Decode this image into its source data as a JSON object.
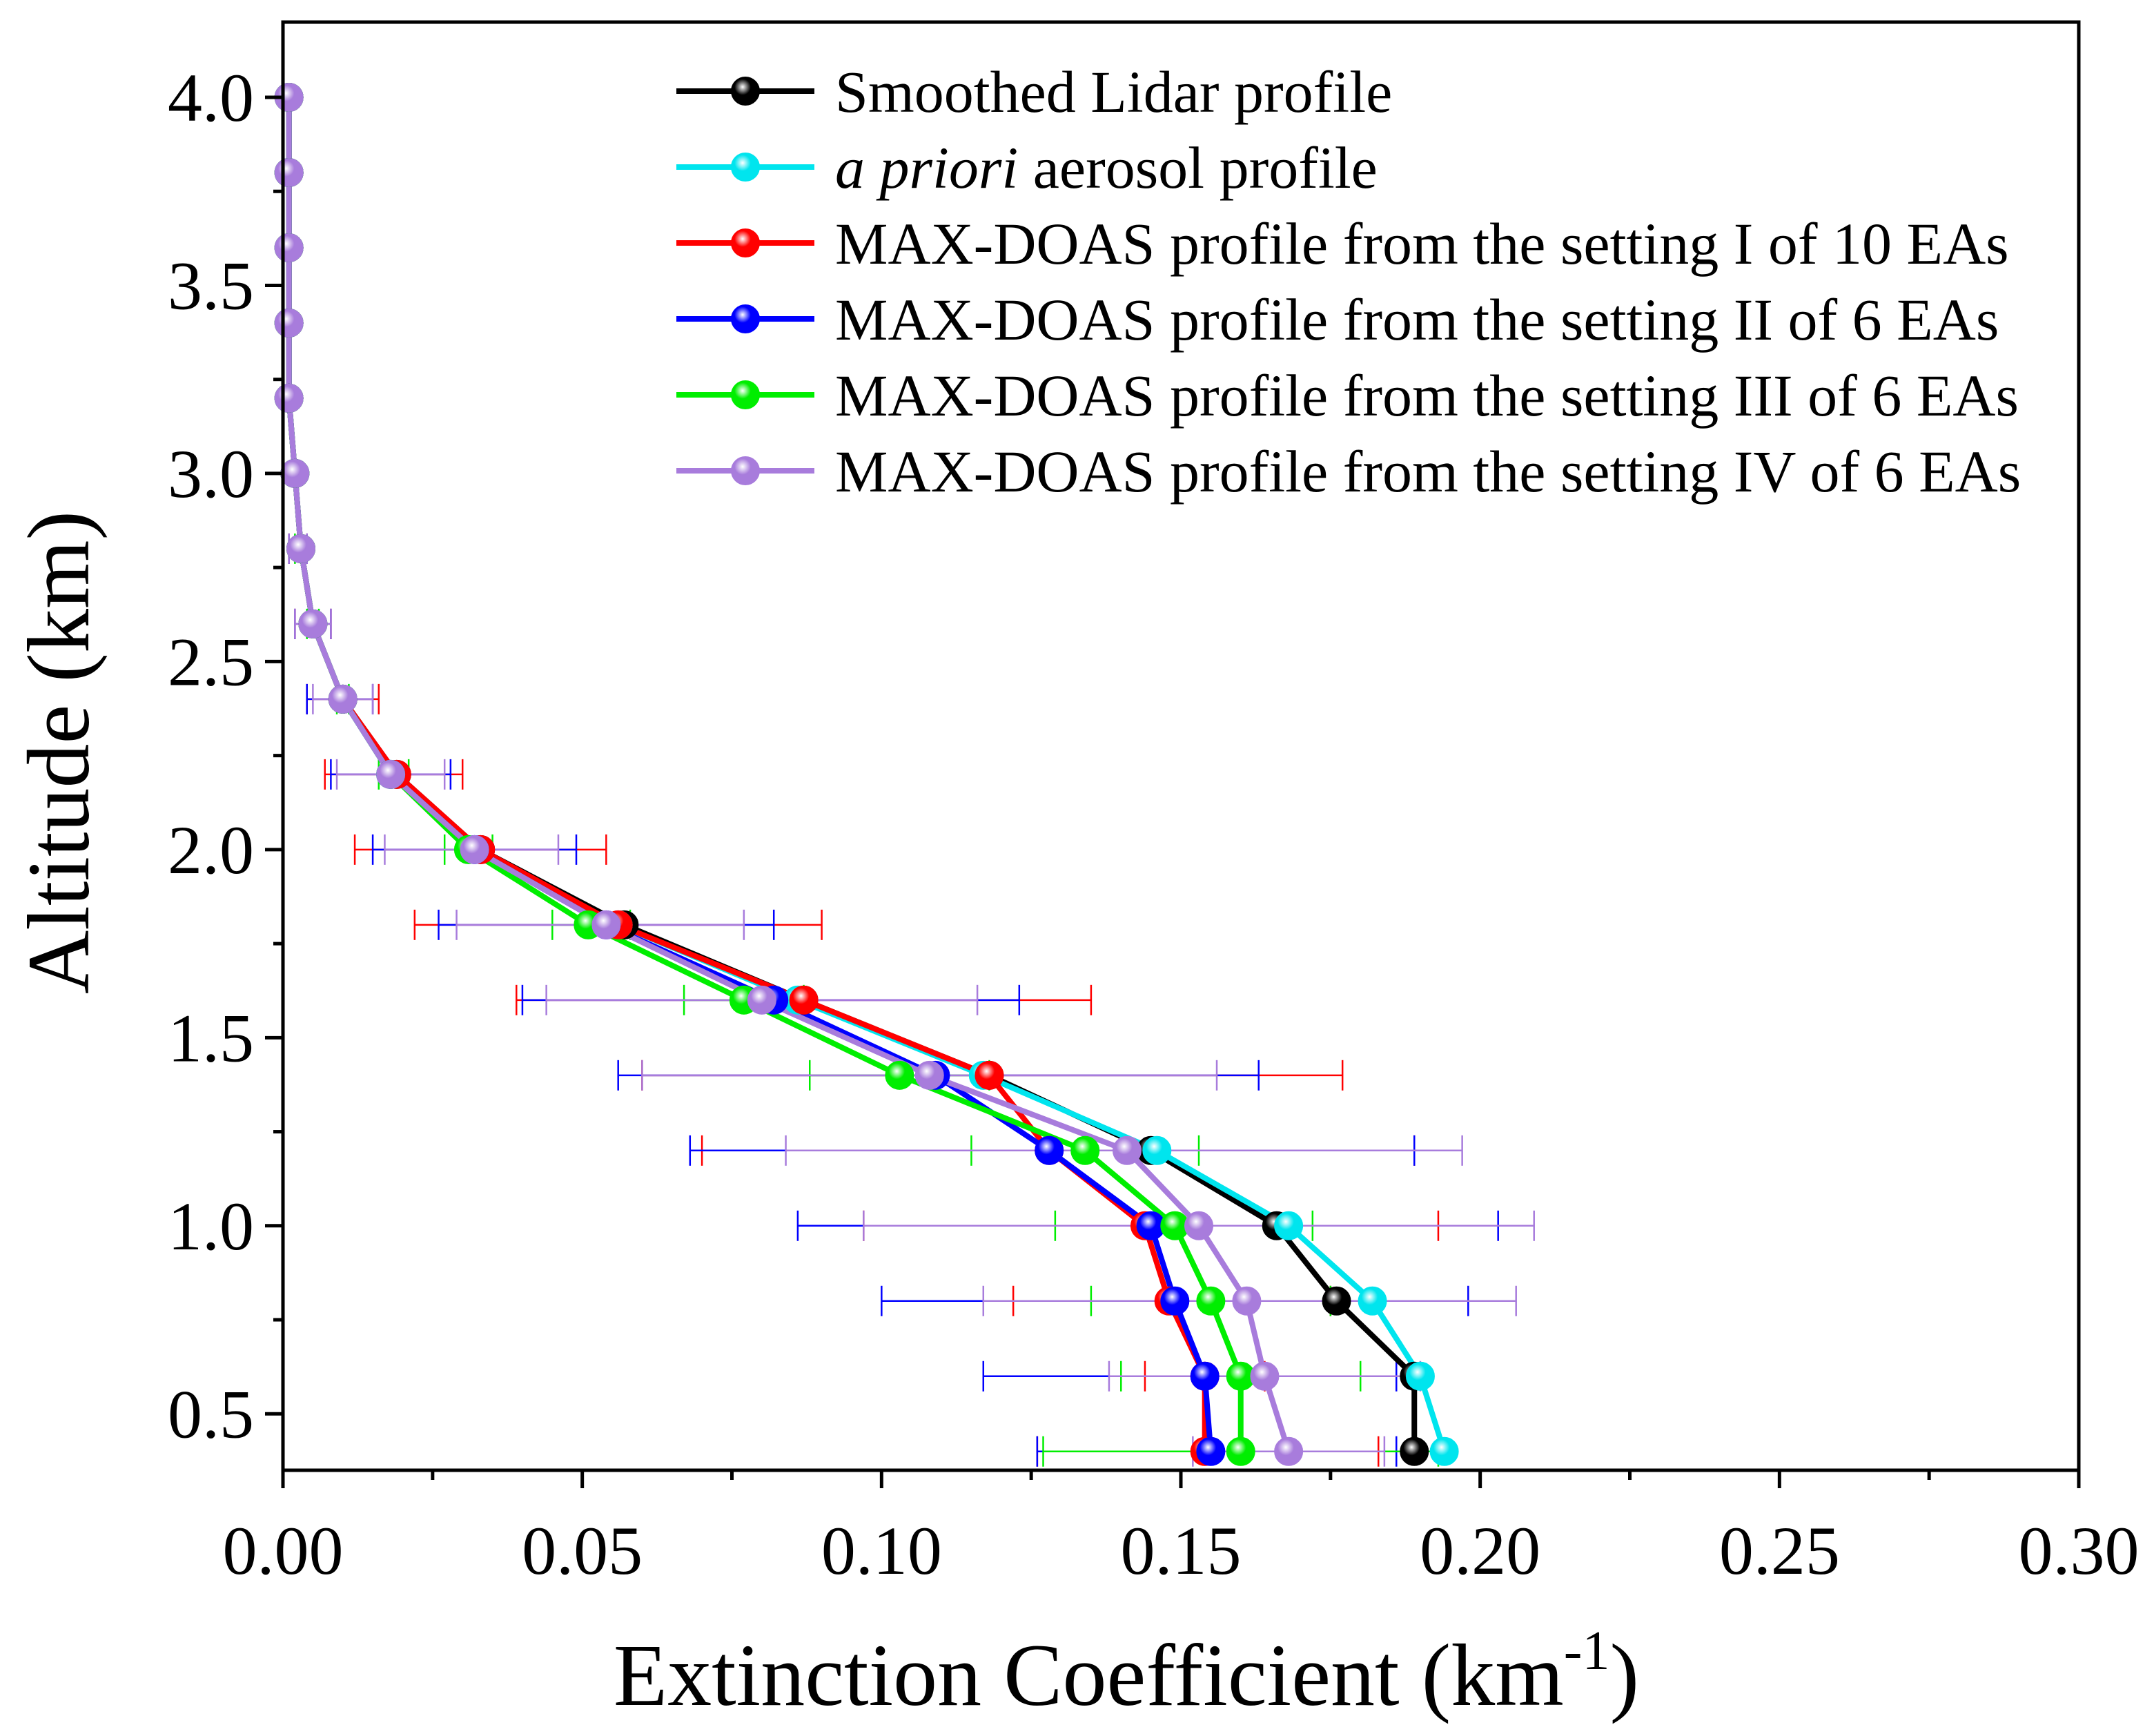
{
  "chart_data": {
    "type": "line",
    "title": "",
    "xlabel": "Extinction Coefficient (km",
    "xlabel_sup": "-1",
    "xlabel_close": ")",
    "ylabel": "Altitude (km)",
    "xlim": [
      0,
      0.3
    ],
    "ylim": [
      0.35,
      4.2
    ],
    "x_ticks": [
      0.0,
      0.05,
      0.1,
      0.15,
      0.2,
      0.25,
      0.3
    ],
    "x_tick_labels": [
      "0.00",
      "0.05",
      "0.10",
      "0.15",
      "0.20",
      "0.25",
      "0.30"
    ],
    "y_ticks": [
      0.5,
      1.0,
      1.5,
      2.0,
      2.5,
      3.0,
      3.5,
      4.0
    ],
    "y_tick_labels": [
      "0.5",
      "1.0",
      "1.5",
      "2.0",
      "2.5",
      "3.0",
      "3.5",
      "4.0"
    ],
    "legend_position": "top-right",
    "altitudes": [
      0.4,
      0.6,
      0.8,
      1.0,
      1.2,
      1.4,
      1.6,
      1.8,
      2.0,
      2.2,
      2.4,
      2.6,
      2.8,
      3.0,
      3.2,
      3.4,
      3.6,
      3.8,
      4.0
    ],
    "series": [
      {
        "name": "Smoothed Lidar profile",
        "legend_italic": "",
        "legend_text": "Smoothed Lidar profile",
        "color": "#000000",
        "x": [
          0.189,
          0.189,
          0.176,
          0.166,
          0.145,
          0.118,
          0.087,
          0.057,
          0.033,
          0.019,
          0.01,
          0.005,
          0.003,
          0.002,
          0.001,
          0.001,
          0.001,
          0.001,
          0.001
        ]
      },
      {
        "name": "a priori aerosol profile",
        "legend_italic": "a priori",
        "legend_text": " aerosol profile",
        "color": "#00e5ee",
        "x": [
          0.194,
          0.19,
          0.182,
          0.168,
          0.146,
          0.117,
          0.086,
          0.056,
          0.032,
          0.018,
          0.01,
          0.005,
          0.003,
          0.002,
          0.001,
          0.001,
          0.001,
          0.001,
          0.001
        ]
      },
      {
        "name": "MAX-DOAS profile from the setting I of 10 EAs",
        "legend_italic": "",
        "legend_text": "MAX-DOAS profile from the setting I of 10 EAs",
        "color": "#ff0000",
        "x": [
          0.154,
          0.154,
          0.148,
          0.144,
          0.128,
          0.118,
          0.087,
          0.056,
          0.033,
          0.019,
          0.01,
          0.005,
          0.003,
          0.002,
          0.001,
          0.001,
          0.001,
          0.001,
          0.001
        ],
        "err_low": [
          0.126,
          0.144,
          0.122,
          0.097,
          0.07,
          0.06,
          0.039,
          0.022,
          0.012,
          0.007,
          0.004,
          0.002,
          0.001
        ],
        "err_high": [
          0.183,
          0.164,
          0.175,
          0.193,
          0.189,
          0.177,
          0.135,
          0.09,
          0.054,
          0.03,
          0.016,
          0.008,
          0.004
        ]
      },
      {
        "name": "MAX-DOAS profile from the setting II of 6 EAs",
        "legend_italic": "",
        "legend_text": "MAX-DOAS profile from the setting II of 6 EAs",
        "color": "#0000ff",
        "x": [
          0.155,
          0.154,
          0.149,
          0.145,
          0.128,
          0.109,
          0.082,
          0.054,
          0.032,
          0.018,
          0.01,
          0.005,
          0.003,
          0.002,
          0.001,
          0.001,
          0.001,
          0.001,
          0.001
        ],
        "err_low": [
          0.126,
          0.117,
          0.1,
          0.086,
          0.068,
          0.056,
          0.04,
          0.026,
          0.015,
          0.008,
          0.004,
          0.002,
          0.001
        ],
        "err_high": [
          0.186,
          0.186,
          0.198,
          0.203,
          0.189,
          0.163,
          0.123,
          0.082,
          0.049,
          0.028,
          0.015,
          0.008,
          0.004
        ]
      },
      {
        "name": "MAX-DOAS profile from the setting III of 6 EAs",
        "legend_italic": "",
        "legend_text": "MAX-DOAS profile from the setting III of 6 EAs",
        "color": "#00ee00",
        "x": [
          0.16,
          0.16,
          0.155,
          0.149,
          0.134,
          0.103,
          0.077,
          0.051,
          0.031,
          0.018,
          0.01,
          0.005,
          0.003,
          0.002,
          0.001,
          0.001,
          0.001,
          0.001,
          0.001
        ],
        "err_low": [
          0.127,
          0.14,
          0.135,
          0.129,
          0.115,
          0.088,
          0.067,
          0.045,
          0.027,
          0.016,
          0.009,
          0.004,
          0.002
        ],
        "err_high": [
          0.193,
          0.18,
          0.175,
          0.172,
          0.153,
          0.118,
          0.087,
          0.058,
          0.035,
          0.021,
          0.011,
          0.006,
          0.003
        ]
      },
      {
        "name": "MAX-DOAS profile from the setting IV of 6 EAs",
        "legend_italic": "",
        "legend_text": "MAX-DOAS profile from the setting IV of 6 EAs",
        "color": "#a87cdc",
        "x": [
          0.168,
          0.164,
          0.161,
          0.153,
          0.141,
          0.108,
          0.08,
          0.054,
          0.032,
          0.018,
          0.01,
          0.005,
          0.003,
          0.002,
          0.001,
          0.001,
          0.001,
          0.001,
          0.001
        ],
        "err_low": [
          0.152,
          0.138,
          0.117,
          0.097,
          0.084,
          0.06,
          0.044,
          0.029,
          0.017,
          0.009,
          0.005,
          0.002,
          0.001
        ],
        "err_high": [
          0.184,
          0.19,
          0.206,
          0.209,
          0.197,
          0.156,
          0.116,
          0.077,
          0.046,
          0.027,
          0.015,
          0.008,
          0.004
        ]
      }
    ]
  }
}
